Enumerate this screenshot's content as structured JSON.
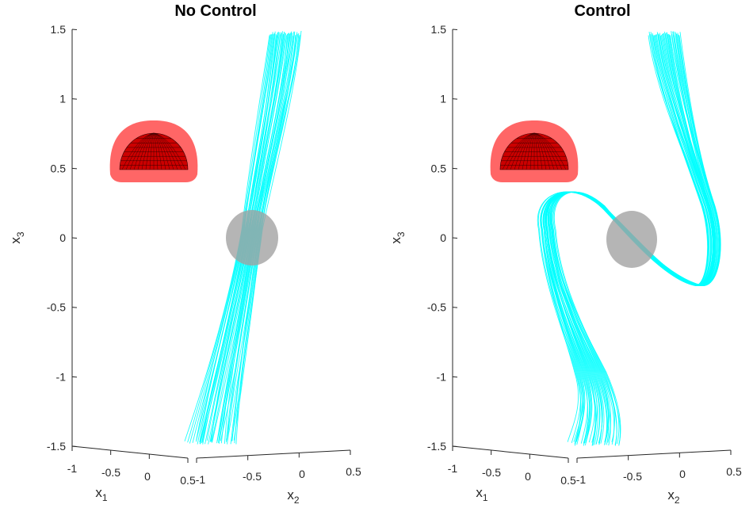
{
  "chart_data": [
    {
      "type": "3d-trajectory",
      "title": "No Control",
      "z_axis": {
        "label": "x",
        "sub": "3",
        "ticks": [
          1.5,
          1,
          0.5,
          0,
          -0.5,
          -1,
          -1.5
        ],
        "tick_labels": [
          "1.5",
          "1",
          "0.5",
          "0",
          "-0.5",
          "-1",
          "-1.5"
        ],
        "range": [
          -1.5,
          1.5
        ]
      },
      "x1_axis": {
        "label": "x",
        "sub": "1",
        "ticks": [
          -1,
          -0.5,
          0,
          0.5
        ],
        "tick_labels": [
          "-1",
          "-0.5",
          "0",
          "0.5"
        ]
      },
      "x2_axis": {
        "label": "x",
        "sub": "2",
        "ticks": [
          -1,
          -0.5,
          0,
          0.5
        ],
        "tick_labels": [
          "-1",
          "-0.5",
          "0",
          "0.5"
        ]
      },
      "obstacle": {
        "type": "hemisphere",
        "center_x3": 0.55,
        "color": "#cc0000",
        "halo_color": "#ff6666"
      },
      "target": {
        "type": "sphere",
        "center_x3": 0.0,
        "color": "#a0a0a0"
      },
      "trajectory_color": "#00ffff",
      "trajectories": {
        "x3_start": 1.47,
        "x3_end": -1.47,
        "count": 40
      }
    },
    {
      "type": "3d-trajectory",
      "title": "Control",
      "z_axis": {
        "label": "x",
        "sub": "3",
        "ticks": [
          1.5,
          1,
          0.5,
          0,
          -0.5,
          -1,
          -1.5
        ],
        "tick_labels": [
          "1.5",
          "1",
          "0.5",
          "0",
          "-0.5",
          "-1",
          "-1.5"
        ],
        "range": [
          -1.5,
          1.5
        ]
      },
      "x1_axis": {
        "label": "x",
        "sub": "1",
        "ticks": [
          -1,
          -0.5,
          0,
          0.5
        ],
        "tick_labels": [
          "-1",
          "-0.5",
          "0",
          "0.5"
        ]
      },
      "x2_axis": {
        "label": "x",
        "sub": "2",
        "ticks": [
          -1,
          -0.5,
          0,
          0.5
        ],
        "tick_labels": [
          "-1",
          "-0.5",
          "0",
          "0.5"
        ]
      },
      "obstacle": {
        "type": "hemisphere",
        "center_x3": 0.55,
        "color": "#cc0000",
        "halo_color": "#ff6666"
      },
      "target": {
        "type": "sphere",
        "center_x3": 0.0,
        "color": "#a0a0a0"
      },
      "trajectory_color": "#00ffff",
      "trajectories": {
        "x3_start": 1.47,
        "x3_end": -1.47,
        "count": 40
      }
    }
  ]
}
